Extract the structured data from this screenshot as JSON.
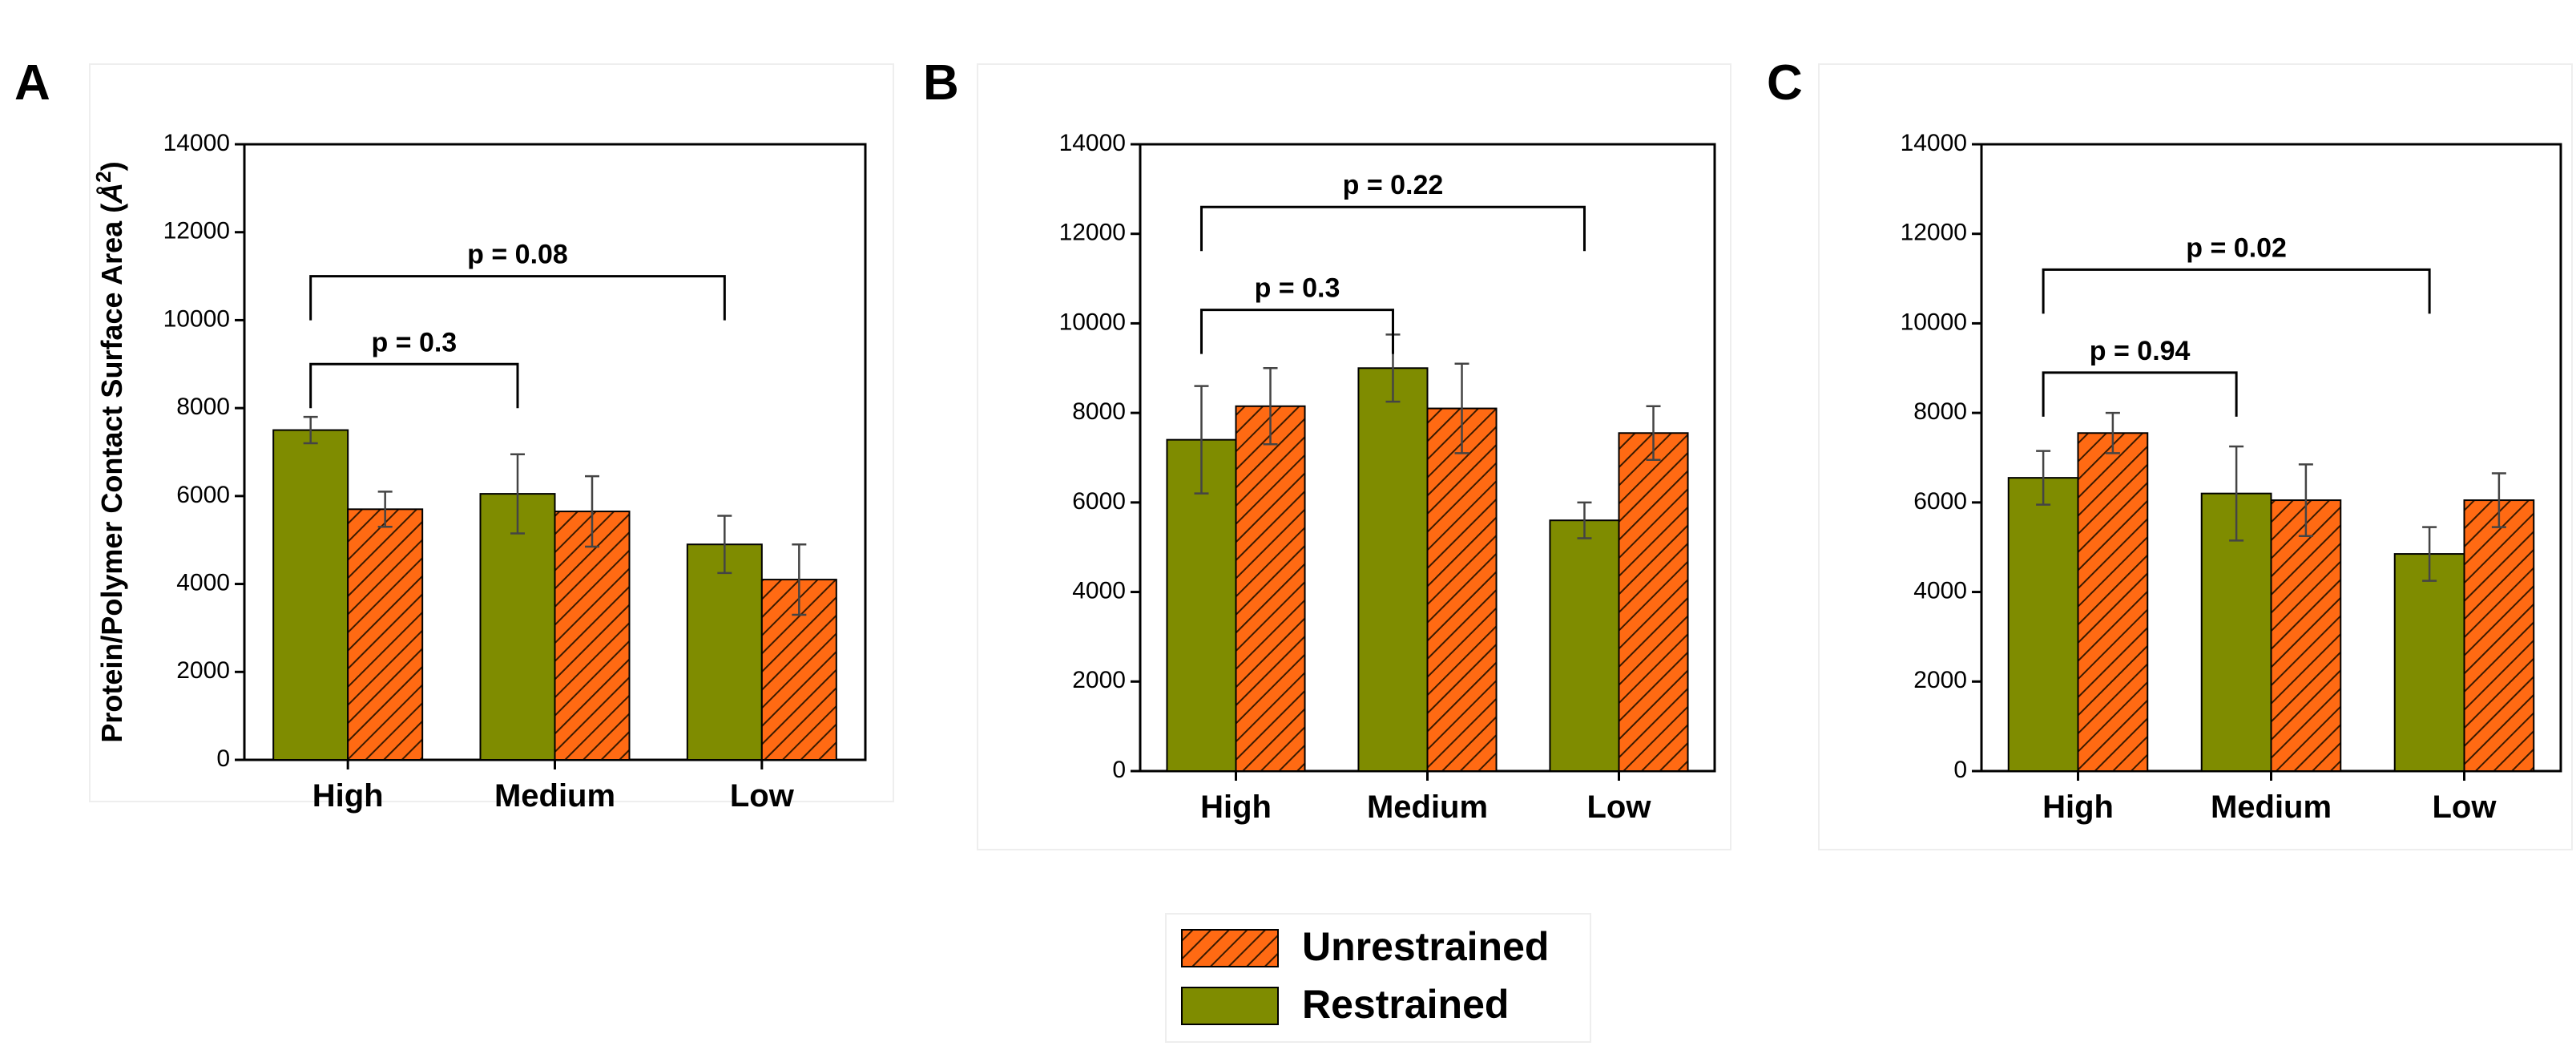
{
  "colors": {
    "restrained": "#7f8c00",
    "unrestrained": "#ff6a13",
    "hatch": "#3a1a00",
    "axis": "#000000"
  },
  "legend": {
    "items": [
      {
        "label": "Unrestrained",
        "pattern": "hatched"
      },
      {
        "label": "Restrained",
        "pattern": "solid"
      }
    ]
  },
  "chart_data": [
    {
      "panel": "A",
      "type": "bar",
      "ylabel": "Protein/Polymer Contact Surface Area (Å²)",
      "ylabel_main": "Protein/Polymer Contact Surface Area (",
      "ylabel_unit": "Å",
      "ylabel_sup": "2",
      "ylabel_close": ")",
      "ylim": [
        0,
        14000
      ],
      "yticks": [
        0,
        2000,
        4000,
        6000,
        8000,
        10000,
        12000,
        14000
      ],
      "ytick_labels": [
        "0",
        "2000",
        "4000",
        "6000",
        "8000",
        "10000",
        "12000",
        "14000"
      ],
      "categories": [
        "High",
        "Medium",
        "Low"
      ],
      "series": [
        {
          "name": "Restrained",
          "values": [
            7500,
            6050,
            4900
          ],
          "errors": [
            300,
            900,
            650
          ]
        },
        {
          "name": "Unrestrained",
          "values": [
            5700,
            5650,
            4100
          ],
          "errors": [
            400,
            800,
            800
          ]
        }
      ],
      "annotations": [
        {
          "text": "p = 0.3",
          "from": "High",
          "to": "Medium",
          "y": 9000
        },
        {
          "text": "p = 0.08",
          "from": "High",
          "to": "Low",
          "y": 11000
        }
      ]
    },
    {
      "panel": "B",
      "type": "bar",
      "ylim": [
        0,
        14000
      ],
      "yticks": [
        0,
        2000,
        4000,
        6000,
        8000,
        10000,
        12000,
        14000
      ],
      "ytick_labels": [
        "0",
        "2000",
        "4000",
        "6000",
        "8000",
        "10000",
        "12000",
        "14000"
      ],
      "categories": [
        "High",
        "Medium",
        "Low"
      ],
      "series": [
        {
          "name": "Restrained",
          "values": [
            7400,
            9000,
            5600
          ],
          "errors": [
            1200,
            750,
            400
          ]
        },
        {
          "name": "Unrestrained",
          "values": [
            8150,
            8100,
            7550
          ],
          "errors": [
            850,
            1000,
            600
          ]
        }
      ],
      "annotations": [
        {
          "text": "p = 0.3",
          "from": "High",
          "to": "Medium",
          "y": 10300
        },
        {
          "text": "p = 0.22",
          "from": "High",
          "to": "Low",
          "y": 12600
        }
      ]
    },
    {
      "panel": "C",
      "type": "bar",
      "ylim": [
        0,
        14000
      ],
      "yticks": [
        0,
        2000,
        4000,
        6000,
        8000,
        10000,
        12000,
        14000
      ],
      "ytick_labels": [
        "0",
        "2000",
        "4000",
        "6000",
        "8000",
        "10000",
        "12000",
        "14000"
      ],
      "categories": [
        "High",
        "Medium",
        "Low"
      ],
      "series": [
        {
          "name": "Restrained",
          "values": [
            6550,
            6200,
            4850
          ],
          "errors": [
            600,
            1050,
            600
          ]
        },
        {
          "name": "Unrestrained",
          "values": [
            7550,
            6050,
            6050
          ],
          "errors": [
            450,
            800,
            600
          ]
        }
      ],
      "annotations": [
        {
          "text": "p = 0.94",
          "from": "High",
          "to": "Medium",
          "y": 8900
        },
        {
          "text": "p = 0.02",
          "from": "High",
          "to": "Low",
          "y": 11200
        }
      ]
    }
  ]
}
